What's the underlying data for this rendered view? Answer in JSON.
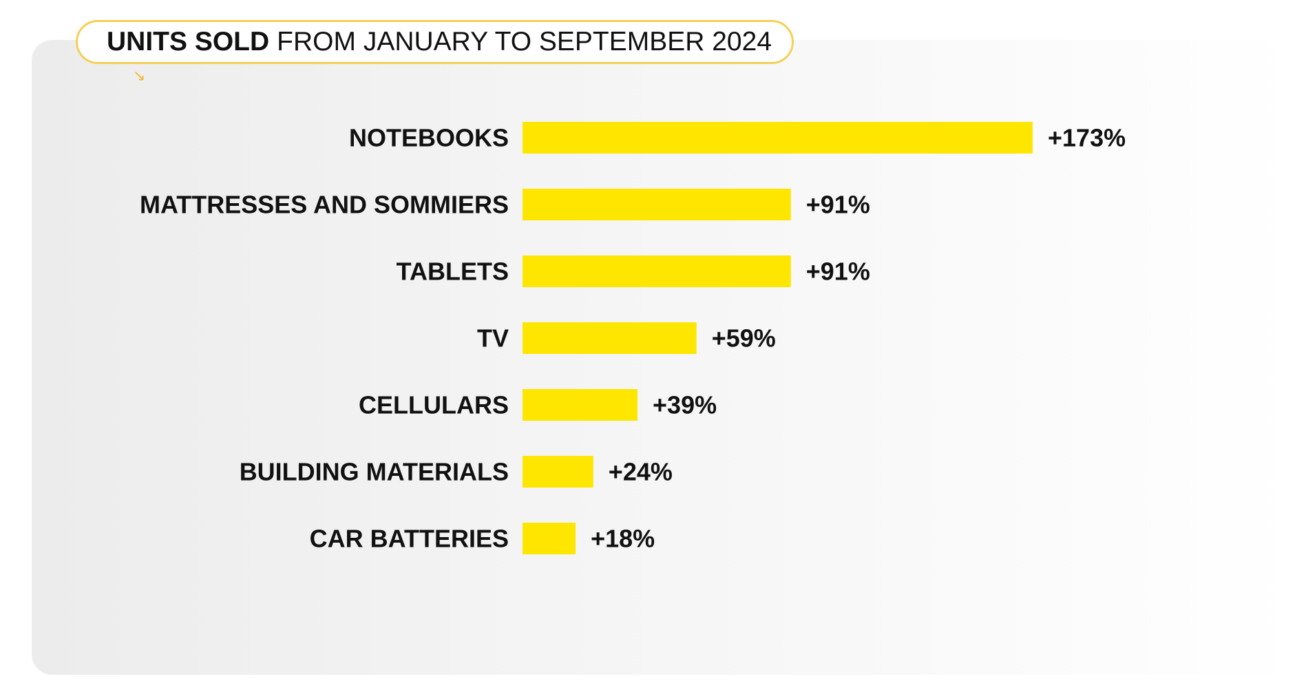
{
  "title": {
    "bold": "UNITS SOLD",
    "regular": "FROM JANUARY TO SEPTEMBER 2024"
  },
  "icons": {
    "title_arrow": "arrow-down-right-icon"
  },
  "colors": {
    "bar": "#ffe600",
    "pill_border": "#f6cf55",
    "text": "#111111"
  },
  "chart_data": {
    "type": "bar",
    "orientation": "horizontal",
    "title": "UNITS SOLD FROM JANUARY TO SEPTEMBER 2024",
    "categories": [
      "NOTEBOOKS",
      "MATTRESSES AND SOMMIERS",
      "TABLETS",
      "TV",
      "CELLULARS",
      "BUILDING MATERIALS",
      "CAR BATTERIES"
    ],
    "values": [
      173,
      91,
      91,
      59,
      39,
      24,
      18
    ],
    "value_labels": [
      "+173%",
      "+91%",
      "+91%",
      "+59%",
      "+39%",
      "+24%",
      "+18%"
    ],
    "unit": "%",
    "xlim": [
      0,
      173
    ],
    "grid": false,
    "legend": "none"
  }
}
